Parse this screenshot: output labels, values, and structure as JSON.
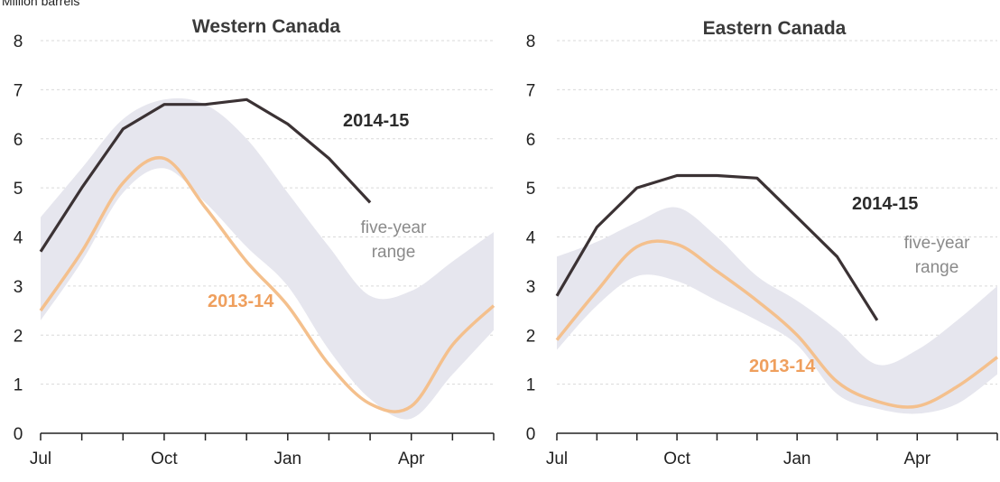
{
  "unit_label": "Million barrels",
  "colors": {
    "series_2014_15": "#3b3234",
    "series_2013_14": "#f4c08d",
    "range_fill": "#e6e6ee",
    "label_2013_14": "#ef9f5d",
    "range_label": "#8a8a8a",
    "grid": "#d9d9d9"
  },
  "chart_data": [
    {
      "type": "line",
      "title": "Western Canada",
      "ylim": [
        0,
        8
      ],
      "yticks": [
        0,
        1,
        2,
        3,
        4,
        5,
        6,
        7,
        8
      ],
      "grid": true,
      "x_tick_labels": [
        {
          "label": "Jul",
          "x": 0
        },
        {
          "label": "Oct",
          "x": 3
        },
        {
          "label": "Jan",
          "x": 6
        },
        {
          "label": "Apr",
          "x": 9
        }
      ],
      "x_months": 12,
      "band": {
        "name": "five-year range",
        "x": [
          0,
          1,
          2,
          3,
          4,
          5,
          6,
          7,
          8,
          9,
          10,
          11
        ],
        "low": [
          2.3,
          3.5,
          4.9,
          5.4,
          4.7,
          3.8,
          3.0,
          1.7,
          0.7,
          0.3,
          1.2,
          2.1
        ],
        "high": [
          4.4,
          5.4,
          6.4,
          6.8,
          6.7,
          6.0,
          4.9,
          3.8,
          2.8,
          2.9,
          3.5,
          4.1
        ]
      },
      "series": [
        {
          "name": "2014-15",
          "x": [
            0,
            1,
            2,
            3,
            4,
            5,
            6,
            7,
            8
          ],
          "values": [
            3.7,
            5.0,
            6.2,
            6.7,
            6.7,
            6.8,
            6.3,
            5.6,
            4.7
          ]
        },
        {
          "name": "2013-14",
          "x": [
            0,
            1,
            2,
            3,
            4,
            5,
            6,
            7,
            8,
            9,
            10,
            11
          ],
          "values": [
            2.5,
            3.7,
            5.1,
            5.6,
            4.6,
            3.5,
            2.6,
            1.4,
            0.6,
            0.55,
            1.8,
            2.6
          ]
        }
      ],
      "annotations": {
        "series_2014_15": "2014-15",
        "series_2013_14": "2013-14",
        "range_line1": "five-year",
        "range_line2": "range"
      }
    },
    {
      "type": "line",
      "title": "Eastern Canada",
      "ylim": [
        0,
        8
      ],
      "yticks": [
        0,
        1,
        2,
        3,
        4,
        5,
        6,
        7,
        8
      ],
      "grid": true,
      "x_tick_labels": [
        {
          "label": "Jul",
          "x": 0
        },
        {
          "label": "Oct",
          "x": 3
        },
        {
          "label": "Jan",
          "x": 6
        },
        {
          "label": "Apr",
          "x": 9
        }
      ],
      "x_months": 12,
      "band": {
        "name": "five-year range",
        "x": [
          0,
          1,
          2,
          3,
          4,
          5,
          6,
          7,
          8,
          9,
          10,
          11
        ],
        "low": [
          1.7,
          2.6,
          3.2,
          3.1,
          2.7,
          2.3,
          1.8,
          0.8,
          0.5,
          0.4,
          0.6,
          1.2
        ],
        "high": [
          3.6,
          3.9,
          4.3,
          4.6,
          4.0,
          3.2,
          2.7,
          2.1,
          1.4,
          1.7,
          2.3,
          3.0
        ]
      },
      "series": [
        {
          "name": "2014-15",
          "x": [
            0,
            1,
            2,
            3,
            4,
            5,
            6,
            7,
            8
          ],
          "values": [
            2.8,
            4.2,
            5.0,
            5.25,
            5.25,
            5.2,
            4.4,
            3.6,
            2.3
          ]
        },
        {
          "name": "2013-14",
          "x": [
            0,
            1,
            2,
            3,
            4,
            5,
            6,
            7,
            8,
            9,
            10,
            11
          ],
          "values": [
            1.9,
            2.9,
            3.8,
            3.85,
            3.3,
            2.7,
            2.0,
            1.05,
            0.65,
            0.55,
            0.95,
            1.55
          ]
        }
      ],
      "annotations": {
        "series_2014_15": "2014-15",
        "series_2013_14": "2013-14",
        "range_line1": "five-year",
        "range_line2": "range"
      }
    }
  ]
}
